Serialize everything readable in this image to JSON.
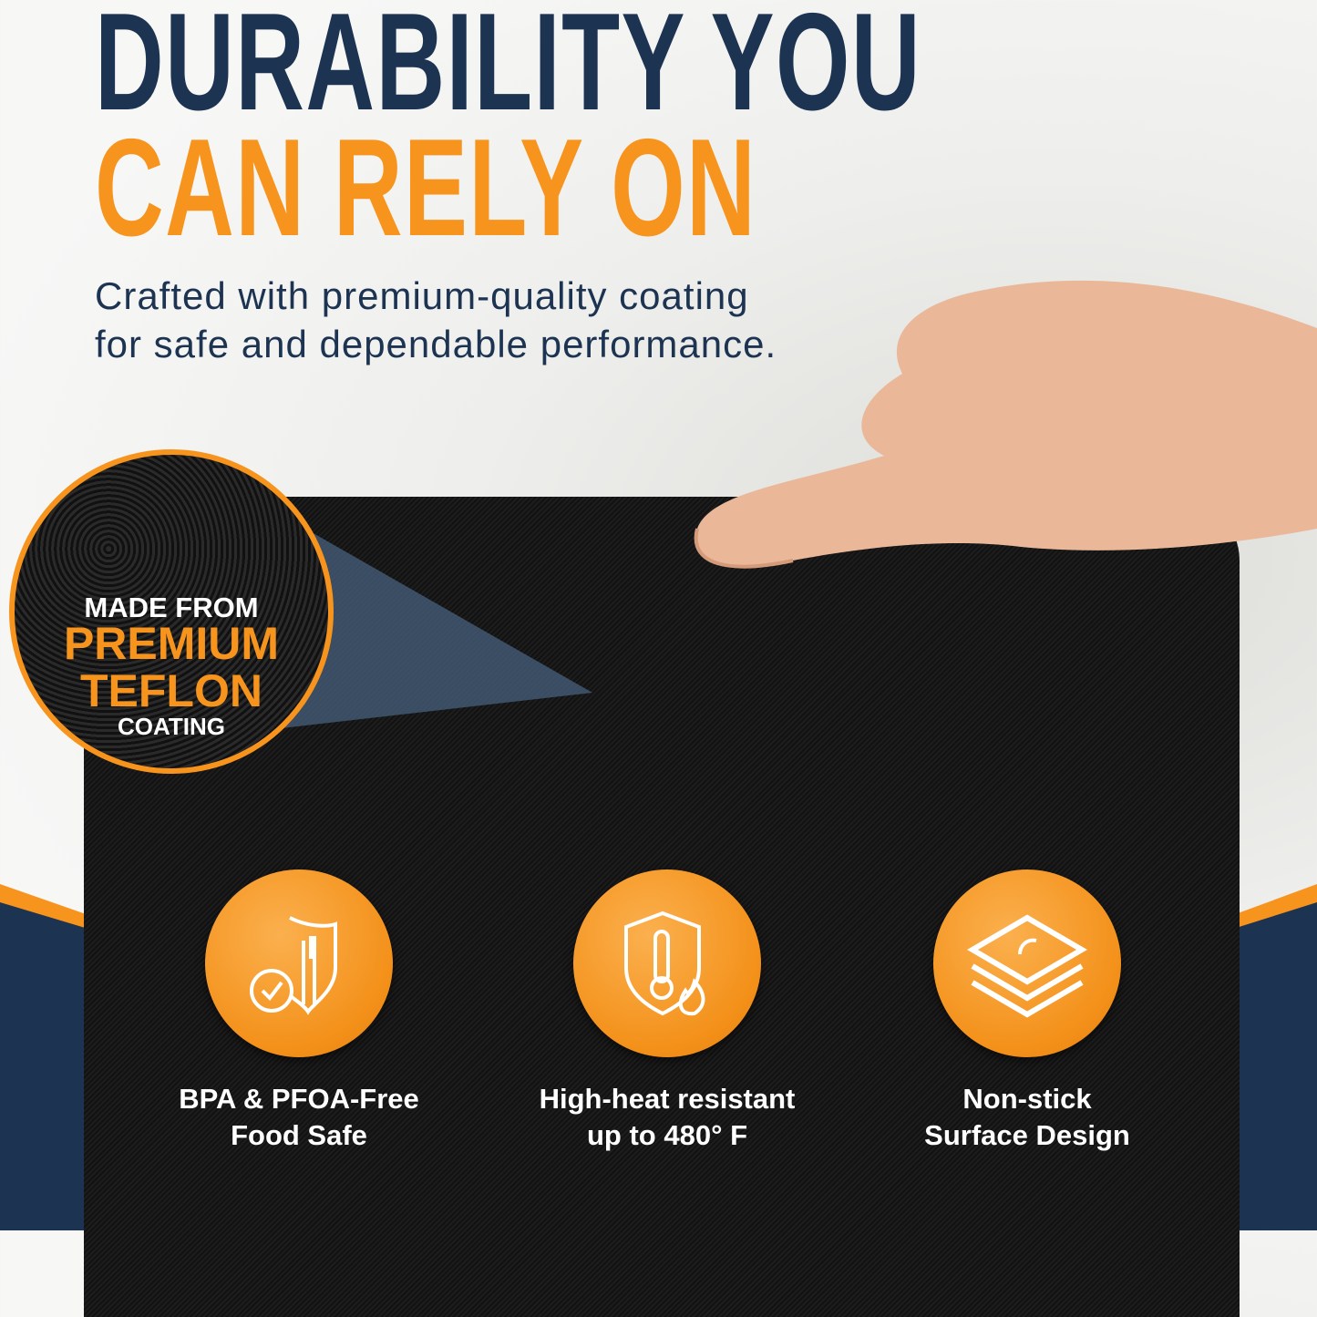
{
  "headline": {
    "line1": "DURABILITY YOU",
    "line2": "CAN RELY ON"
  },
  "subtitle": "Crafted with premium-quality coating for safe and dependable performance.",
  "badge": {
    "line1": "MADE FROM",
    "line2": "PREMIUM",
    "line3": "TEFLON",
    "line4": "COATING"
  },
  "features": [
    {
      "icon": "shield-utensils-check-icon",
      "line1": "BPA & PFOA-Free",
      "line2": "Food Safe"
    },
    {
      "icon": "shield-thermometer-flame-icon",
      "line1": "High-heat resistant",
      "line2": "up to 480° F"
    },
    {
      "icon": "stacked-layers-icon",
      "line1": "Non-stick",
      "line2": "Surface Design"
    }
  ],
  "colors": {
    "navy": "#1d3352",
    "orange": "#f7941d",
    "mat": "#181818"
  }
}
